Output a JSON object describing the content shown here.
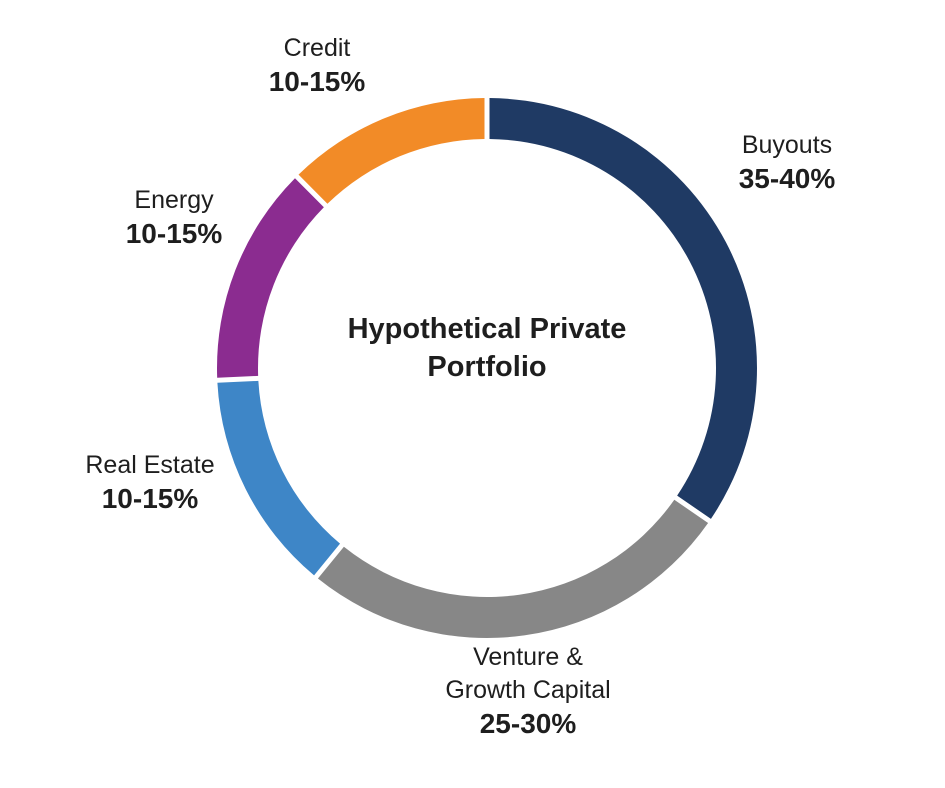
{
  "chart_data": {
    "type": "donut",
    "center_title": "Hypothetical Private Portfolio",
    "center_title_lines": [
      "Hypothetical Private",
      "Portfolio"
    ],
    "start_angle_deg": 0,
    "direction": "clockwise",
    "segments": [
      {
        "name": "Buyouts",
        "allocation_range": "35-40%",
        "sweep_deg": 124.5,
        "color": "#1F3A64"
      },
      {
        "name": "Venture & Growth Capital",
        "name_lines": [
          "Venture &",
          "Growth Capital"
        ],
        "allocation_range": "25-30%",
        "sweep_deg": 94.8,
        "color": "#878787"
      },
      {
        "name": "Real Estate",
        "allocation_range": "10-15%",
        "sweep_deg": 48.1,
        "color": "#3E86C7"
      },
      {
        "name": "Energy",
        "allocation_range": "10-15%",
        "sweep_deg": 47.8,
        "color": "#8B2C90"
      },
      {
        "name": "Credit",
        "allocation_range": "10-15%",
        "sweep_deg": 44.8,
        "color": "#F28B27"
      }
    ]
  }
}
